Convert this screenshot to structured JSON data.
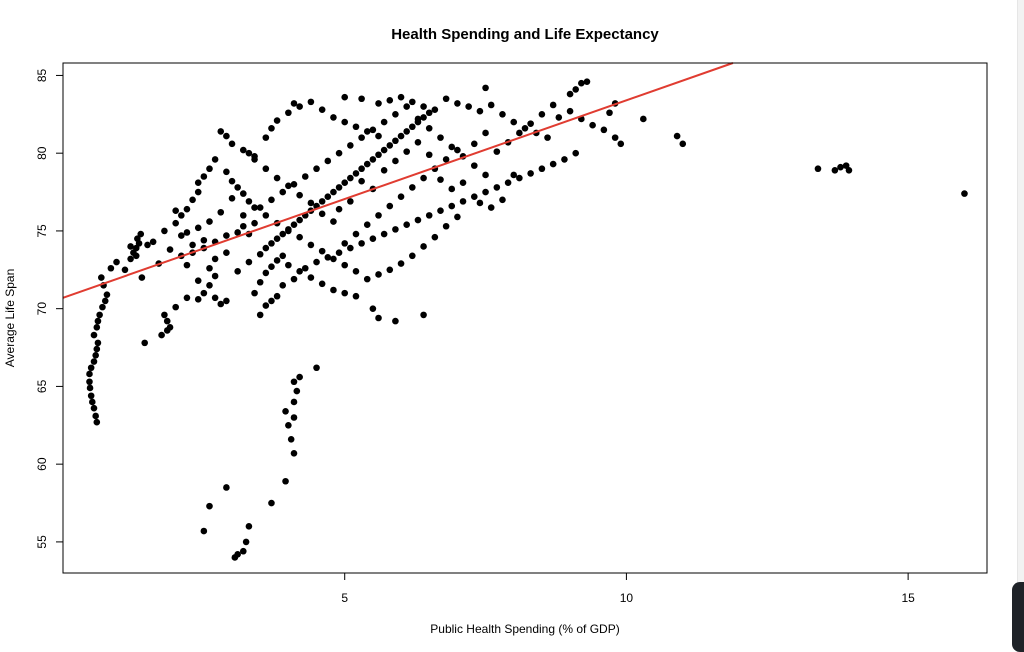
{
  "chart_data": {
    "type": "scatter",
    "title": "Health Spending and Life Expectancy",
    "xlabel": "Public Health Spending (% of GDP)",
    "ylabel": "Average Life Span",
    "xlim": [
      0,
      16.4
    ],
    "ylim": [
      53.0,
      85.8
    ],
    "xticks": [
      5,
      10,
      15
    ],
    "yticks": [
      55,
      60,
      65,
      70,
      75,
      80,
      85
    ],
    "point_color": "#000000",
    "trendline": {
      "intercept": 70.7,
      "slope": 1.27,
      "color": "#e03c31"
    },
    "series": [
      {
        "values": []
      }
    ]
  }
}
